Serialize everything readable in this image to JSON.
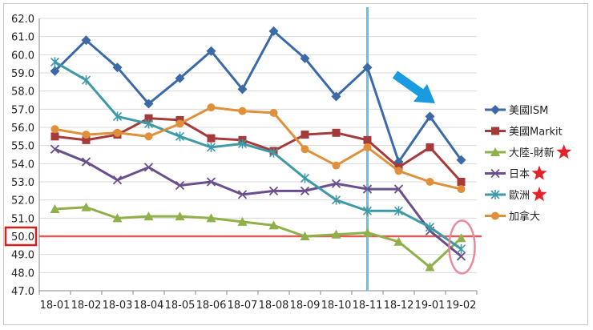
{
  "chart_data": {
    "type": "line",
    "categories": [
      "18-01",
      "18-02",
      "18-03",
      "18-04",
      "18-05",
      "18-06",
      "18-07",
      "18-08",
      "18-09",
      "18-10",
      "18-11",
      "18-12",
      "19-01",
      "19-02"
    ],
    "ylim": [
      47.0,
      62.0
    ],
    "ytick_step": 1.0,
    "ytick_labels": [
      "47.0",
      "48.0",
      "49.0",
      "50.0",
      "51.0",
      "52.0",
      "53.0",
      "54.0",
      "55.0",
      "56.0",
      "57.0",
      "58.0",
      "59.0",
      "60.0",
      "61.0",
      "62.0"
    ],
    "grid": "horizontal",
    "legend_position": "right",
    "series": [
      {
        "name": "美國ISM",
        "color": "#3b6aa6",
        "marker": "diamond",
        "star": false,
        "values": [
          59.1,
          60.8,
          59.3,
          57.3,
          58.7,
          60.2,
          58.1,
          61.3,
          59.8,
          57.7,
          59.3,
          54.1,
          56.6,
          54.2
        ]
      },
      {
        "name": "美國Markit",
        "color": "#a63a3a",
        "marker": "square",
        "star": false,
        "values": [
          55.5,
          55.3,
          55.6,
          56.5,
          56.4,
          55.4,
          55.3,
          54.7,
          55.6,
          55.7,
          55.3,
          53.8,
          54.9,
          53.0
        ]
      },
      {
        "name": "大陸-財新",
        "color": "#8fb04a",
        "marker": "triangle",
        "star": true,
        "values": [
          51.5,
          51.6,
          51.0,
          51.1,
          51.1,
          51.0,
          50.8,
          50.6,
          50.0,
          50.1,
          50.2,
          49.7,
          48.3,
          49.9
        ]
      },
      {
        "name": "日本",
        "color": "#6a4f8c",
        "marker": "x",
        "star": true,
        "values": [
          54.8,
          54.1,
          53.1,
          53.8,
          52.8,
          53.0,
          52.3,
          52.5,
          52.5,
          52.9,
          52.6,
          52.6,
          50.3,
          48.9
        ]
      },
      {
        "name": "歐洲",
        "color": "#3d9aa6",
        "marker": "asterisk",
        "star": true,
        "values": [
          59.6,
          58.6,
          56.6,
          56.2,
          55.5,
          54.9,
          55.1,
          54.6,
          53.2,
          52.0,
          51.4,
          51.4,
          50.5,
          49.3
        ]
      },
      {
        "name": "加拿大",
        "color": "#e0903a",
        "marker": "circle",
        "star": false,
        "values": [
          55.9,
          55.6,
          55.7,
          55.5,
          56.2,
          57.1,
          56.9,
          56.8,
          54.8,
          53.9,
          54.9,
          53.6,
          53.0,
          52.6
        ]
      }
    ],
    "annotations": {
      "reference_line_value": 50.0,
      "reference_line_color": "#e05a5a",
      "reference_label": "50.0",
      "highlight_box_color": "#d62020",
      "vertical_marker_category": "18-11",
      "vertical_marker_color": "#5fc3ea",
      "trend_arrow_color": "#1a9be0",
      "highlight_ellipse_category": "19-02",
      "highlight_ellipse_color": "#e88a9a",
      "star_color": "#e8202a"
    }
  }
}
